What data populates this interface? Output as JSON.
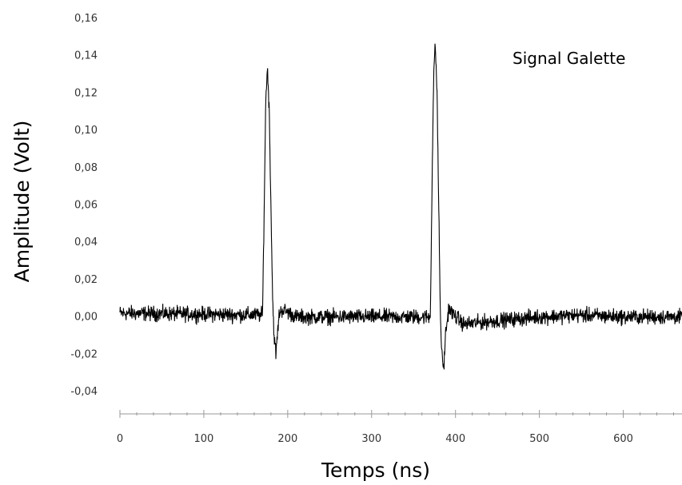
{
  "chart_data": {
    "type": "line",
    "title": "",
    "xlabel": "Temps (ns)",
    "ylabel": "Amplitude (Volt)",
    "annotation": "Signal Galette",
    "xlim": [
      0,
      670
    ],
    "ylim": [
      -0.04,
      0.16
    ],
    "x_ticks": [
      0,
      100,
      200,
      300,
      400,
      500,
      600
    ],
    "x_tick_labels": [
      "0",
      "100",
      "200",
      "300",
      "400",
      "500",
      "600"
    ],
    "y_ticks": [
      -0.04,
      -0.02,
      0.0,
      0.02,
      0.04,
      0.06,
      0.08,
      0.1,
      0.12,
      0.14,
      0.16
    ],
    "y_tick_labels": [
      "-0,04",
      "-0,02",
      "0,00",
      "0,02",
      "0,04",
      "0,06",
      "0,08",
      "0,10",
      "0,12",
      "0,14",
      "0,16"
    ],
    "grid": false,
    "legend": "none",
    "series_color": "#000000",
    "series": [
      {
        "x": [
          0,
          170,
          172,
          174,
          176,
          178,
          180,
          182,
          184,
          186,
          188,
          190,
          194,
          198,
          210,
          250,
          300,
          340,
          370,
          372,
          374,
          376,
          378,
          380,
          382,
          384,
          386,
          388,
          392,
          396,
          410,
          450,
          500,
          550,
          600,
          670
        ],
        "y": [
          0.002,
          0.001,
          0.06,
          0.12,
          0.133,
          0.11,
          0.06,
          0.01,
          -0.012,
          -0.02,
          -0.008,
          0.002,
          0.004,
          0.003,
          0.0,
          0.0,
          0.0,
          0.0,
          0.0,
          0.07,
          0.13,
          0.146,
          0.12,
          0.06,
          0.0,
          -0.022,
          -0.028,
          -0.01,
          0.005,
          0.002,
          -0.004,
          -0.002,
          0.0,
          0.001,
          0.0,
          0.0
        ],
        "noise_amplitude": 0.006
      }
    ]
  }
}
